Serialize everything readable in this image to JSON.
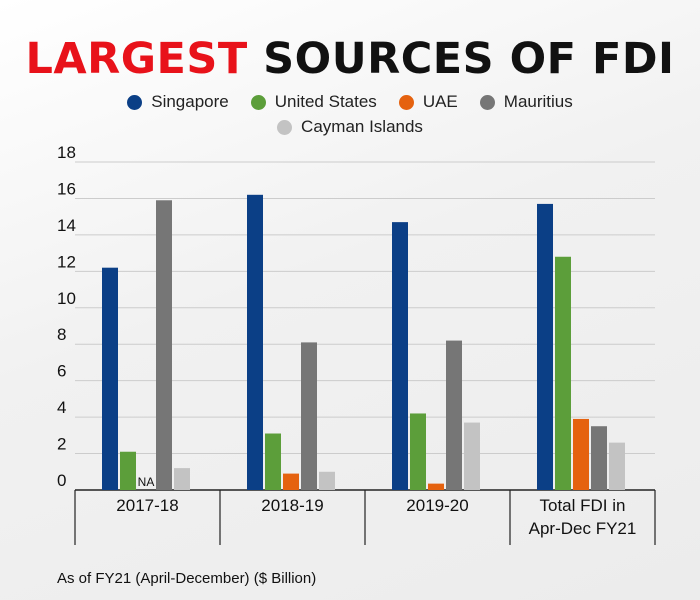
{
  "title_highlight": "LARGEST",
  "title_rest": " SOURCES OF FDI",
  "footnote": "As of FY21 (April-December) ($ Billion)",
  "colors": {
    "Singapore": "#0b3f86",
    "United States": "#5c9e3a",
    "UAE": "#e5620f",
    "Mauritius": "#767676",
    "Cayman Islands": "#c3c3c3",
    "grid": "#cccccc",
    "axis": "#222222"
  },
  "chart_data": {
    "type": "bar",
    "title": "LARGEST SOURCES OF FDI",
    "ylim": [
      0,
      18
    ],
    "yticks": [
      0,
      2,
      4,
      6,
      8,
      10,
      12,
      14,
      16,
      18
    ],
    "grid": true,
    "legend_position": "top",
    "categories": [
      "2017-18",
      "2018-19",
      "2019-20",
      "Total FDI in Apr-Dec FY21"
    ],
    "series": [
      {
        "name": "Singapore",
        "values": [
          12.2,
          16.2,
          14.7,
          15.7
        ]
      },
      {
        "name": "United States",
        "values": [
          2.1,
          3.1,
          4.2,
          12.8
        ]
      },
      {
        "name": "UAE",
        "values": [
          null,
          0.9,
          0.35,
          3.9
        ]
      },
      {
        "name": "Mauritius",
        "values": [
          15.9,
          8.1,
          8.2,
          3.5
        ]
      },
      {
        "name": "Cayman Islands",
        "values": [
          1.2,
          1.0,
          3.7,
          2.6
        ]
      }
    ],
    "annotations": [
      {
        "category": "2017-18",
        "series": "UAE",
        "text": "NA"
      }
    ]
  }
}
